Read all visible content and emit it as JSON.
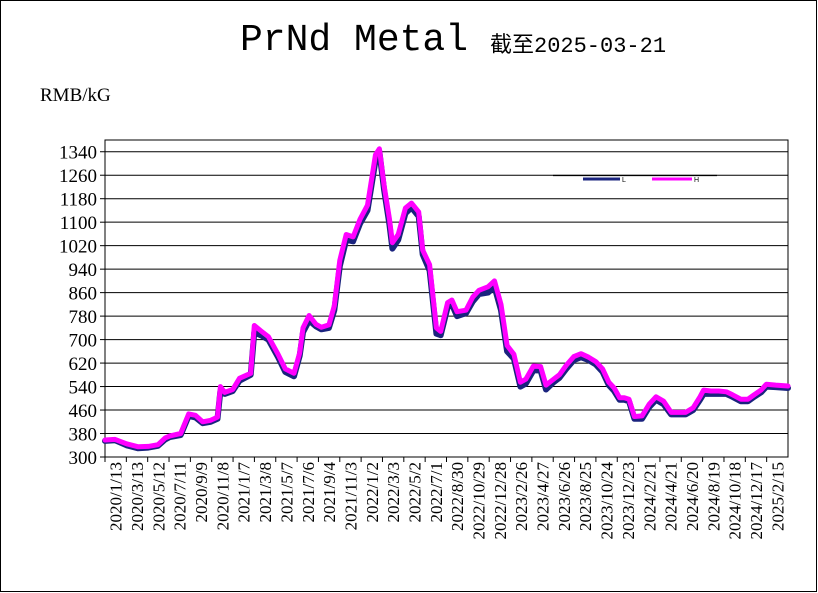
{
  "chart_data": {
    "type": "line",
    "title": "PrNd Metal",
    "subtitle": "截至2025-03-21",
    "ylabel": "RMB/kG",
    "ylim": [
      300,
      1380
    ],
    "yticks": [
      300,
      380,
      460,
      540,
      620,
      700,
      780,
      860,
      940,
      1020,
      1100,
      1180,
      1260,
      1340
    ],
    "grid": true,
    "legend_position": "top-right",
    "x_tick_labels": [
      "2020/1/13",
      "2020/3/13",
      "2020/5/12",
      "2020/7/11",
      "2020/9/9",
      "2020/11/8",
      "2021/1/7",
      "2021/3/8",
      "2021/5/7",
      "2021/7/6",
      "2021/9/4",
      "2021/11/3",
      "2022/1/2",
      "2022/3/3",
      "2022/5/2",
      "2022/7/1",
      "2022/8/30",
      "2022/10/29",
      "2022/12/28",
      "2023/2/26",
      "2023/4/27",
      "2023/6/26",
      "2023/8/25",
      "2023/10/24",
      "2023/12/23",
      "2024/2/21",
      "2024/4/21",
      "2024/6/20",
      "2024/8/19",
      "2024/10/18",
      "2024/12/17",
      "2025/2/15"
    ],
    "x_start": "2020/1/13",
    "x_end": "2025/3/21",
    "colors": {
      "low": "#1a237e",
      "high": "#ff00ff"
    },
    "series": [
      {
        "name": "L",
        "points": [
          [
            "2020/1/13",
            355
          ],
          [
            "2020/2/10",
            357
          ],
          [
            "2020/3/13",
            340
          ],
          [
            "2020/4/13",
            330
          ],
          [
            "2020/5/12",
            332
          ],
          [
            "2020/6/8",
            338
          ],
          [
            "2020/6/28",
            360
          ],
          [
            "2020/7/11",
            368
          ],
          [
            "2020/8/10",
            375
          ],
          [
            "2020/9/1",
            440
          ],
          [
            "2020/9/20",
            435
          ],
          [
            "2020/10/10",
            415
          ],
          [
            "2020/11/1",
            420
          ],
          [
            "2020/11/20",
            430
          ],
          [
            "2020/11/28",
            525
          ],
          [
            "2020/12/10",
            515
          ],
          [
            "2021/1/1",
            525
          ],
          [
            "2021/1/20",
            560
          ],
          [
            "2021/2/20",
            580
          ],
          [
            "2021/3/2",
            725
          ],
          [
            "2021/3/20",
            715
          ],
          [
            "2021/4/10",
            700
          ],
          [
            "2021/5/7",
            640
          ],
          [
            "2021/5/27",
            590
          ],
          [
            "2021/6/20",
            575
          ],
          [
            "2021/7/6",
            645
          ],
          [
            "2021/7/15",
            725
          ],
          [
            "2021/8/1",
            765
          ],
          [
            "2021/8/20",
            745
          ],
          [
            "2021/9/4",
            735
          ],
          [
            "2021/9/25",
            740
          ],
          [
            "2021/10/10",
            800
          ],
          [
            "2021/10/25",
            950
          ],
          [
            "2021/11/12",
            1040
          ],
          [
            "2021/12/1",
            1035
          ],
          [
            "2021/12/20",
            1095
          ],
          [
            "2022/1/10",
            1140
          ],
          [
            "2022/2/1",
            1310
          ],
          [
            "2022/2/12",
            1340
          ],
          [
            "2022/2/25",
            1210
          ],
          [
            "2022/3/12",
            1090
          ],
          [
            "2022/3/20",
            1010
          ],
          [
            "2022/4/5",
            1040
          ],
          [
            "2022/4/25",
            1130
          ],
          [
            "2022/5/12",
            1150
          ],
          [
            "2022/6/1",
            1120
          ],
          [
            "2022/6/12",
            990
          ],
          [
            "2022/7/1",
            935
          ],
          [
            "2022/7/20",
            720
          ],
          [
            "2022/8/1",
            715
          ],
          [
            "2022/8/20",
            810
          ],
          [
            "2022/9/1",
            820
          ],
          [
            "2022/9/15",
            780
          ],
          [
            "2022/10/10",
            790
          ],
          [
            "2022/10/29",
            830
          ],
          [
            "2022/11/15",
            855
          ],
          [
            "2022/12/10",
            860
          ],
          [
            "2022/12/28",
            880
          ],
          [
            "2023/1/15",
            800
          ],
          [
            "2023/2/1",
            660
          ],
          [
            "2023/2/20",
            635
          ],
          [
            "2023/3/10",
            540
          ],
          [
            "2023/3/25",
            550
          ],
          [
            "2023/4/15",
            595
          ],
          [
            "2023/5/5",
            595
          ],
          [
            "2023/5/20",
            530
          ],
          [
            "2023/6/10",
            555
          ],
          [
            "2023/6/26",
            570
          ],
          [
            "2023/7/15",
            600
          ],
          [
            "2023/8/5",
            630
          ],
          [
            "2023/8/25",
            640
          ],
          [
            "2023/9/15",
            630
          ],
          [
            "2023/10/5",
            615
          ],
          [
            "2023/10/24",
            590
          ],
          [
            "2023/11/10",
            545
          ],
          [
            "2023/11/25",
            525
          ],
          [
            "2023/12/10",
            495
          ],
          [
            "2023/12/23",
            495
          ],
          [
            "2024/1/5",
            490
          ],
          [
            "2024/1/20",
            430
          ],
          [
            "2024/2/10",
            430
          ],
          [
            "2024/3/1",
            470
          ],
          [
            "2024/3/20",
            495
          ],
          [
            "2024/4/10",
            480
          ],
          [
            "2024/5/1",
            445
          ],
          [
            "2024/5/20",
            445
          ],
          [
            "2024/6/10",
            445
          ],
          [
            "2024/7/1",
            460
          ],
          [
            "2024/7/20",
            495
          ],
          [
            "2024/7/30",
            515
          ],
          [
            "2024/8/19",
            515
          ],
          [
            "2024/9/10",
            515
          ],
          [
            "2024/10/1",
            515
          ],
          [
            "2024/10/18",
            505
          ],
          [
            "2024/11/10",
            490
          ],
          [
            "2024/11/30",
            490
          ],
          [
            "2024/12/17",
            505
          ],
          [
            "2025/1/5",
            520
          ],
          [
            "2025/1/20",
            540
          ],
          [
            "2025/2/15",
            538
          ],
          [
            "2025/3/21",
            535
          ]
        ]
      },
      {
        "name": "H",
        "points": [
          [
            "2020/1/13",
            358
          ],
          [
            "2020/2/10",
            360
          ],
          [
            "2020/3/13",
            345
          ],
          [
            "2020/4/13",
            335
          ],
          [
            "2020/5/12",
            336
          ],
          [
            "2020/6/8",
            342
          ],
          [
            "2020/6/28",
            365
          ],
          [
            "2020/7/11",
            372
          ],
          [
            "2020/8/10",
            380
          ],
          [
            "2020/9/1",
            447
          ],
          [
            "2020/9/20",
            442
          ],
          [
            "2020/10/10",
            420
          ],
          [
            "2020/11/1",
            425
          ],
          [
            "2020/11/20",
            436
          ],
          [
            "2020/11/28",
            540
          ],
          [
            "2020/12/10",
            520
          ],
          [
            "2021/1/1",
            530
          ],
          [
            "2021/1/20",
            568
          ],
          [
            "2021/2/20",
            585
          ],
          [
            "2021/3/2",
            748
          ],
          [
            "2021/3/20",
            730
          ],
          [
            "2021/4/10",
            710
          ],
          [
            "2021/5/7",
            650
          ],
          [
            "2021/5/27",
            600
          ],
          [
            "2021/6/20",
            585
          ],
          [
            "2021/7/6",
            655
          ],
          [
            "2021/7/15",
            740
          ],
          [
            "2021/8/1",
            782
          ],
          [
            "2021/8/20",
            752
          ],
          [
            "2021/9/4",
            742
          ],
          [
            "2021/9/25",
            750
          ],
          [
            "2021/10/10",
            815
          ],
          [
            "2021/10/25",
            970
          ],
          [
            "2021/11/12",
            1058
          ],
          [
            "2021/12/1",
            1050
          ],
          [
            "2021/12/20",
            1110
          ],
          [
            "2022/1/10",
            1158
          ],
          [
            "2022/2/1",
            1330
          ],
          [
            "2022/2/12",
            1350
          ],
          [
            "2022/2/25",
            1225
          ],
          [
            "2022/3/12",
            1110
          ],
          [
            "2022/3/20",
            1030
          ],
          [
            "2022/4/5",
            1058
          ],
          [
            "2022/4/25",
            1148
          ],
          [
            "2022/5/12",
            1165
          ],
          [
            "2022/6/1",
            1135
          ],
          [
            "2022/6/12",
            1005
          ],
          [
            "2022/7/1",
            955
          ],
          [
            "2022/7/20",
            740
          ],
          [
            "2022/8/1",
            728
          ],
          [
            "2022/8/20",
            826
          ],
          [
            "2022/9/1",
            835
          ],
          [
            "2022/9/15",
            795
          ],
          [
            "2022/10/10",
            800
          ],
          [
            "2022/10/29",
            845
          ],
          [
            "2022/11/15",
            868
          ],
          [
            "2022/12/10",
            880
          ],
          [
            "2022/12/28",
            900
          ],
          [
            "2023/1/15",
            820
          ],
          [
            "2023/2/1",
            680
          ],
          [
            "2023/2/20",
            650
          ],
          [
            "2023/3/10",
            555
          ],
          [
            "2023/3/25",
            565
          ],
          [
            "2023/4/15",
            610
          ],
          [
            "2023/5/5",
            608
          ],
          [
            "2023/5/20",
            545
          ],
          [
            "2023/6/10",
            565
          ],
          [
            "2023/6/26",
            580
          ],
          [
            "2023/7/15",
            612
          ],
          [
            "2023/8/5",
            642
          ],
          [
            "2023/8/25",
            652
          ],
          [
            "2023/9/15",
            640
          ],
          [
            "2023/10/5",
            625
          ],
          [
            "2023/10/24",
            600
          ],
          [
            "2023/11/10",
            555
          ],
          [
            "2023/11/25",
            535
          ],
          [
            "2023/12/10",
            502
          ],
          [
            "2023/12/23",
            502
          ],
          [
            "2024/1/5",
            497
          ],
          [
            "2024/1/20",
            438
          ],
          [
            "2024/2/10",
            440
          ],
          [
            "2024/3/1",
            480
          ],
          [
            "2024/3/20",
            505
          ],
          [
            "2024/4/10",
            490
          ],
          [
            "2024/5/1",
            452
          ],
          [
            "2024/5/20",
            452
          ],
          [
            "2024/6/10",
            452
          ],
          [
            "2024/7/1",
            468
          ],
          [
            "2024/7/20",
            505
          ],
          [
            "2024/7/30",
            528
          ],
          [
            "2024/8/19",
            525
          ],
          [
            "2024/9/10",
            525
          ],
          [
            "2024/10/1",
            522
          ],
          [
            "2024/10/18",
            512
          ],
          [
            "2024/11/10",
            497
          ],
          [
            "2024/11/30",
            497
          ],
          [
            "2024/12/17",
            512
          ],
          [
            "2025/1/5",
            528
          ],
          [
            "2025/1/20",
            548
          ],
          [
            "2025/2/15",
            545
          ],
          [
            "2025/3/21",
            542
          ]
        ]
      }
    ]
  }
}
